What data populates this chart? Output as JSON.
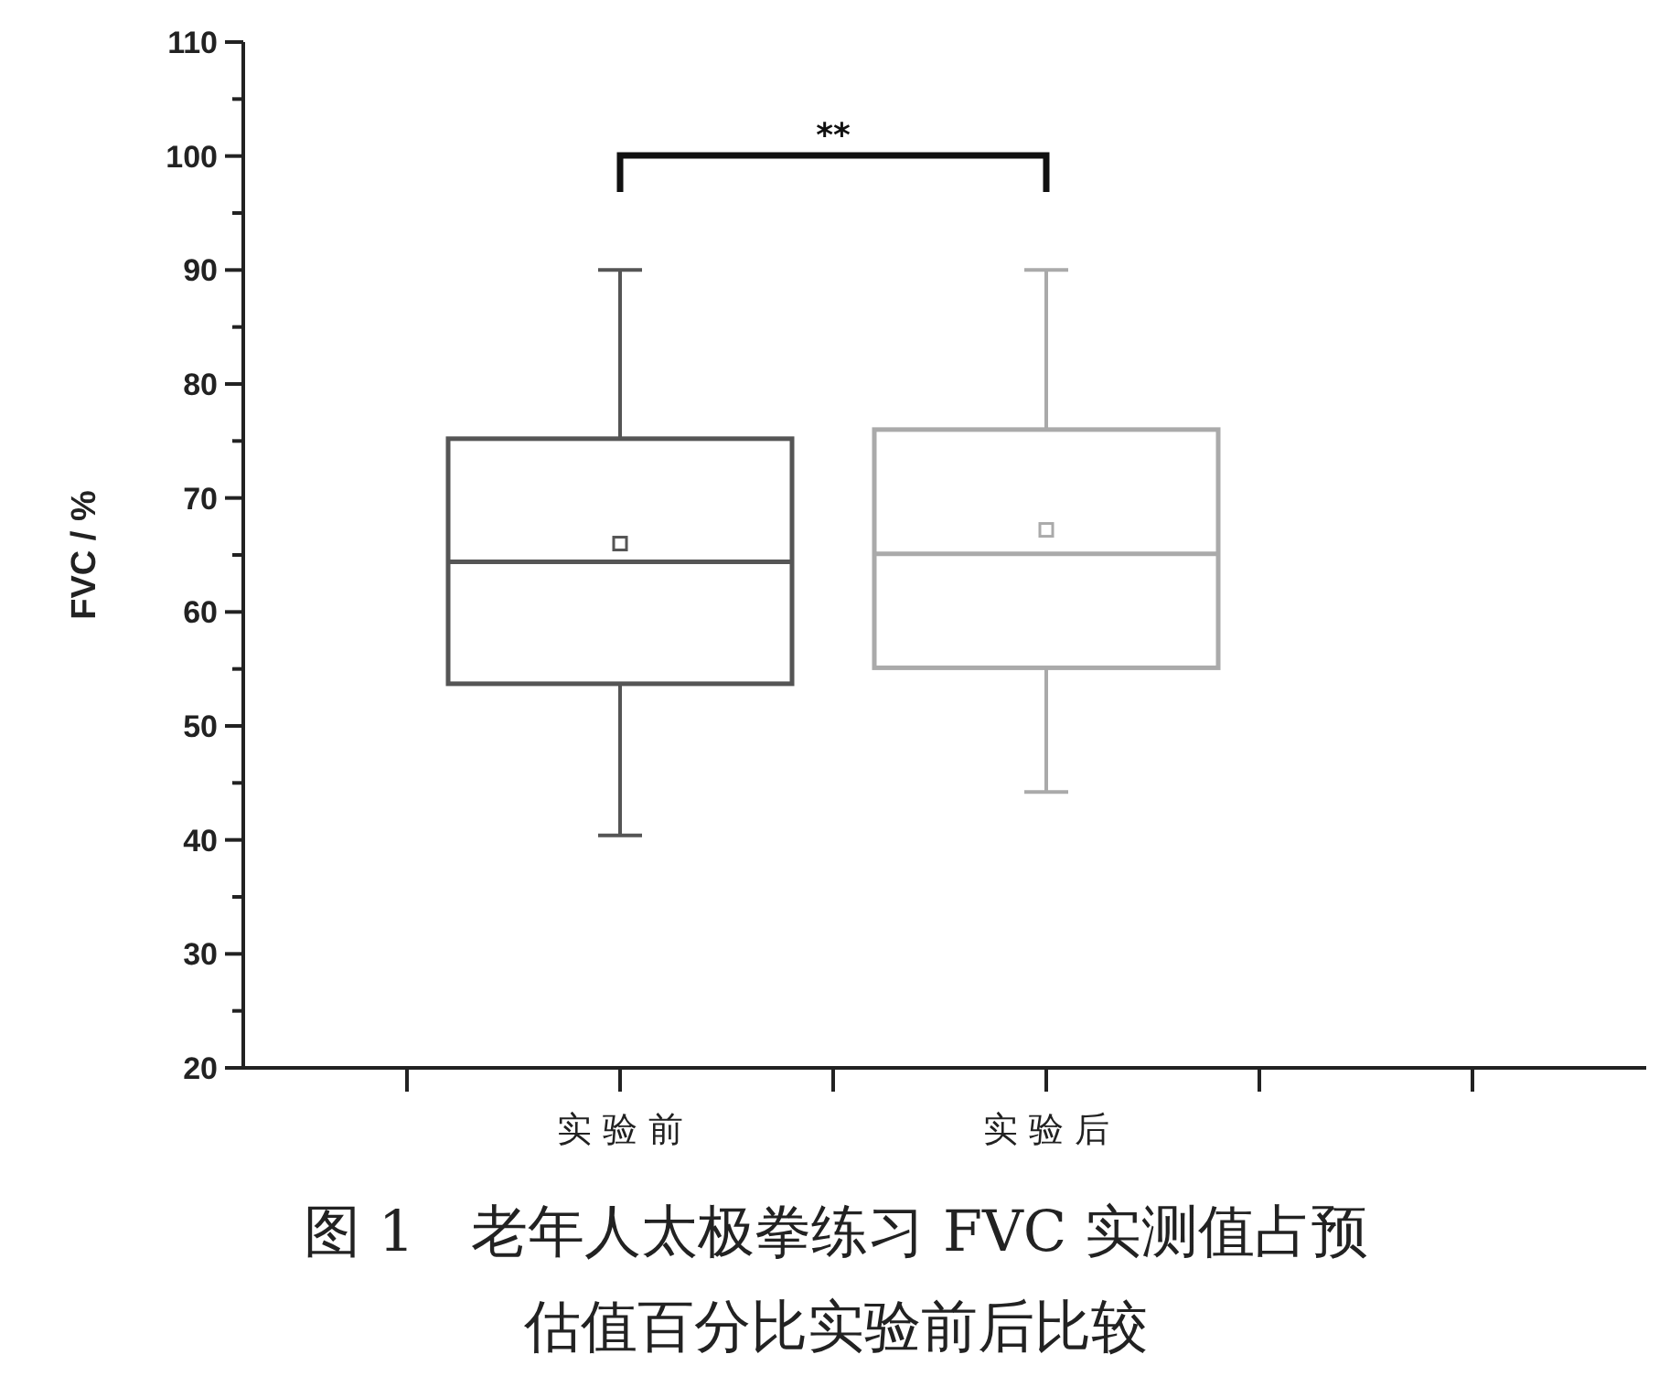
{
  "chart_data": {
    "type": "box",
    "title": "图 1　老年人太极拳练习 FVC 实测值占预估值百分比实验前后比较",
    "ylabel": "FVC / %",
    "categories": [
      "实 验 前",
      "实 验 后"
    ],
    "boxes": [
      {
        "low": 40.4,
        "q1": 53.7,
        "median": 64.4,
        "q3": 75.2,
        "high": 90,
        "mean": 66
      },
      {
        "low": 44.2,
        "q1": 55.1,
        "median": 65.1,
        "q3": 76,
        "high": 90,
        "mean": 67.2
      }
    ],
    "colors": [
      "#555555",
      "#aaaaaa"
    ],
    "ylim": [
      20,
      110
    ],
    "yticks": [
      20,
      30,
      40,
      50,
      60,
      70,
      80,
      90,
      100,
      110
    ],
    "annotations": [
      "**"
    ]
  }
}
